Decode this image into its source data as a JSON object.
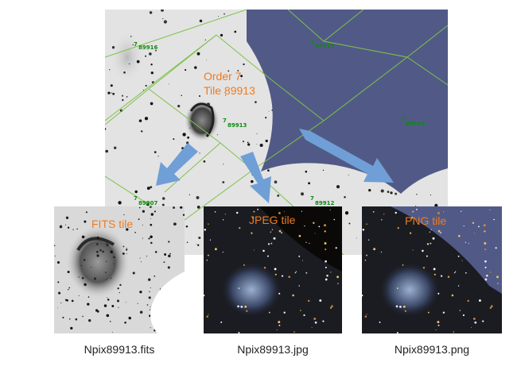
{
  "main_image": {
    "order_label_line1": "Order 7",
    "order_label_line2": "Tile 89913",
    "healpix_labels": {
      "tile_89916": "89916",
      "tile_89915": "89915",
      "tile_89913": "89913",
      "tile_89914": "89914",
      "tile_89907": "89907",
      "tile_89912": "89912"
    },
    "healpix_prefix": "7"
  },
  "tiles": [
    {
      "label": "FITS tile",
      "caption": "Npix89913.fits"
    },
    {
      "label": "JPEG tile",
      "caption": "Npix89913.jpg"
    },
    {
      "label": "PNG tile",
      "caption": "Npix89913.png"
    }
  ],
  "colors": {
    "tile_label": "#f07a1e",
    "grid_green": "#7ec24a",
    "healpix_label": "#0e8a12",
    "masked_region": "#515a86",
    "arrow": "#6f9fd6",
    "jpeg_sky": "#0c0b09"
  }
}
